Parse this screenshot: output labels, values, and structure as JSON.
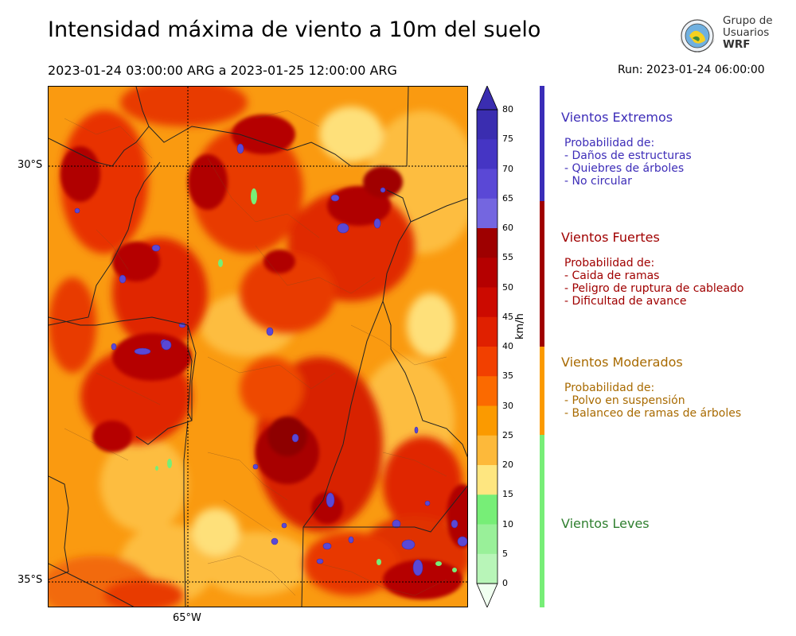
{
  "header": {
    "title": "Intensidad máxima de viento a 10m del suelo",
    "period": "2023-01-24 03:00:00 ARG  a  2023-01-25 12:00:00 ARG",
    "run": "Run: 2023-01-24 06:00:00"
  },
  "logo": {
    "line1": "Grupo de",
    "line2": "Usuarios",
    "line3": "WRF"
  },
  "map": {
    "lat_labels": [
      "30°S",
      "35°S"
    ],
    "lon_labels": [
      "65°W"
    ]
  },
  "colorbar": {
    "unit": "km/h",
    "ticks": [
      "80",
      "75",
      "70",
      "65",
      "60",
      "55",
      "50",
      "45",
      "40",
      "35",
      "30",
      "25",
      "20",
      "15",
      "10",
      "5",
      "0"
    ],
    "colors": [
      "#3a2db0",
      "#4535c4",
      "#5a48d6",
      "#7466e0",
      "#9e0000",
      "#b50000",
      "#cc0a00",
      "#e02000",
      "#f24000",
      "#fb6a00",
      "#fb9a00",
      "#fdb93a",
      "#fee680",
      "#77ee77",
      "#99f099",
      "#b8f5b8",
      "#d4f8d4",
      "#ecfcec"
    ],
    "extend_top_color": "#3a2db0",
    "extend_bottom_color": "#f0fff0"
  },
  "categories": [
    {
      "title": "Vientos Extremos",
      "color": "#3d2db8",
      "lines": [
        "Probabilidad de:",
        "- Daños de estructuras",
        "- Quiebres de árboles",
        "- No circular"
      ]
    },
    {
      "title": "Vientos Fuertes",
      "color": "#a00000",
      "lines": [
        "Probabilidad de:",
        "- Caida de ramas",
        "- Peligro de ruptura de cableado",
        "- Dificultad de avance"
      ]
    },
    {
      "title": "Vientos Moderados",
      "color": "#a86a00",
      "lines": [
        "Probabilidad de:",
        "- Polvo en suspensión",
        "- Balanceo de ramas de árboles"
      ]
    },
    {
      "title": "Vientos Leves",
      "color": "#2f7f2f",
      "lines": []
    }
  ],
  "category_bar_colors": [
    "#3a2db8",
    "#a00000",
    "#fb9a00",
    "#77ee77"
  ]
}
